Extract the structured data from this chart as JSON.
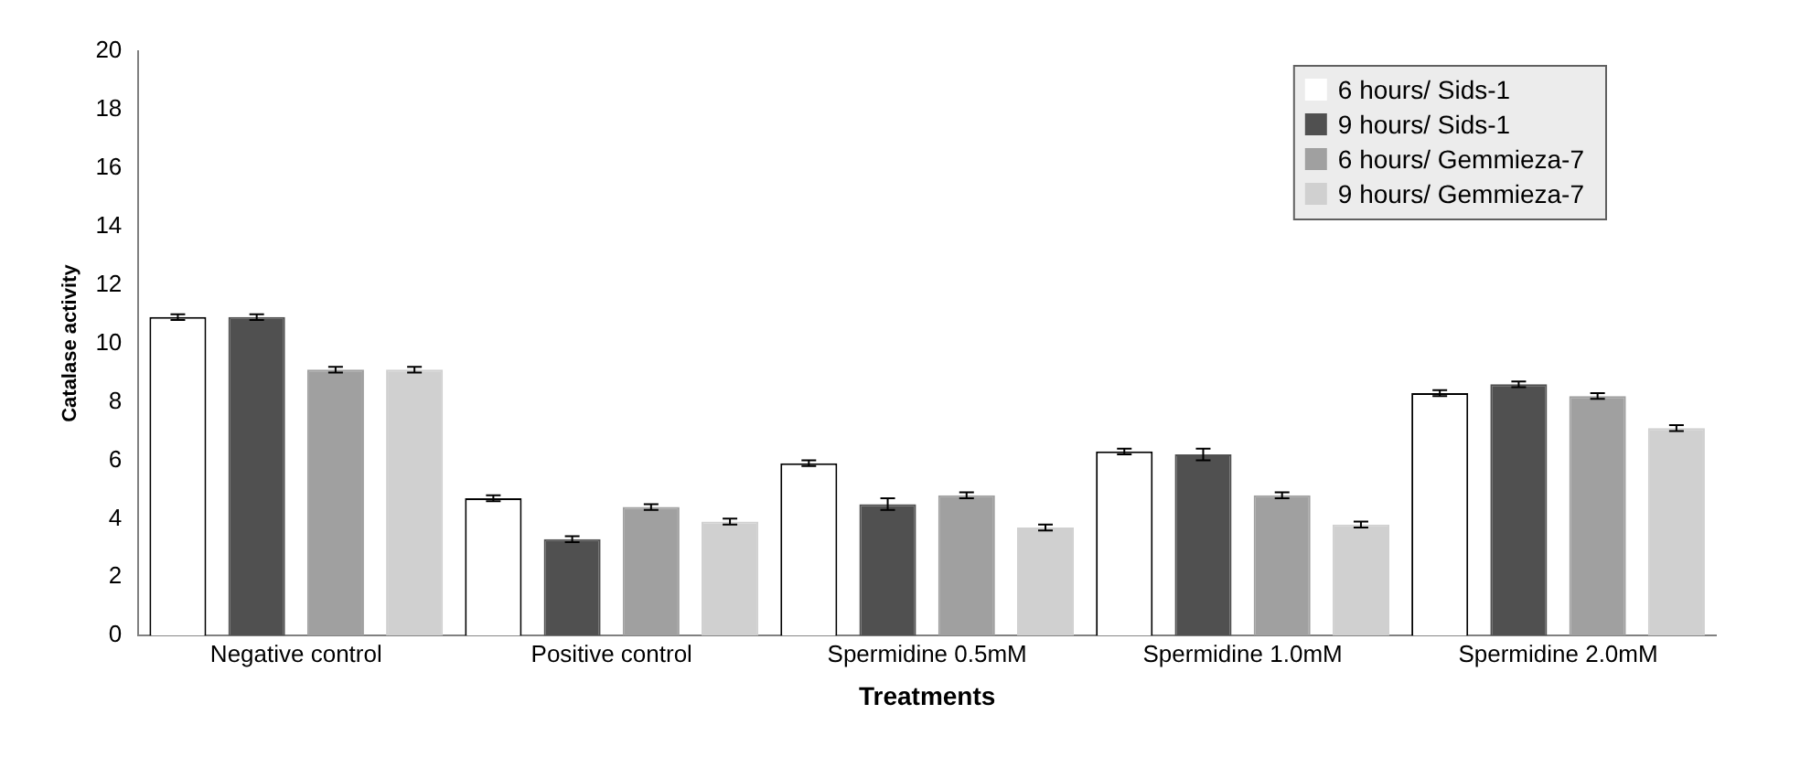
{
  "chart_data": {
    "type": "bar",
    "xlabel": "Treatments",
    "ylabel": "Catalase activity",
    "categories": [
      "Negative control",
      "Positive control",
      "Spermidine 0.5mM",
      "Spermidine 1.0mM",
      "Spermidine 2.0mM"
    ],
    "series": [
      {
        "name": "6 hours/ Sids-1",
        "color": "#ffffff",
        "values": [
          10.9,
          4.7,
          5.9,
          6.3,
          8.3
        ],
        "errors": [
          0.1,
          0.1,
          0.1,
          0.1,
          0.1
        ]
      },
      {
        "name": "9 hours/ Sids-1",
        "color": "#505050",
        "values": [
          10.9,
          3.3,
          4.5,
          6.2,
          8.6
        ],
        "errors": [
          0.1,
          0.1,
          0.2,
          0.2,
          0.1
        ]
      },
      {
        "name": "6 hours/ Gemmieza-7",
        "color": "#a0a0a0",
        "values": [
          9.1,
          4.4,
          4.8,
          4.8,
          8.2
        ],
        "errors": [
          0.1,
          0.1,
          0.1,
          0.1,
          0.1
        ]
      },
      {
        "name": "9 hours/ Gemmieza-7",
        "color": "#d0d0d0",
        "values": [
          9.1,
          3.9,
          3.7,
          3.8,
          7.1
        ],
        "errors": [
          0.1,
          0.1,
          0.1,
          0.1,
          0.1
        ]
      }
    ],
    "ylim": [
      0,
      20
    ],
    "yticks": [
      0,
      2,
      4,
      6,
      8,
      10,
      12,
      14,
      16,
      18,
      20
    ],
    "grid": false,
    "legend": "top right"
  }
}
